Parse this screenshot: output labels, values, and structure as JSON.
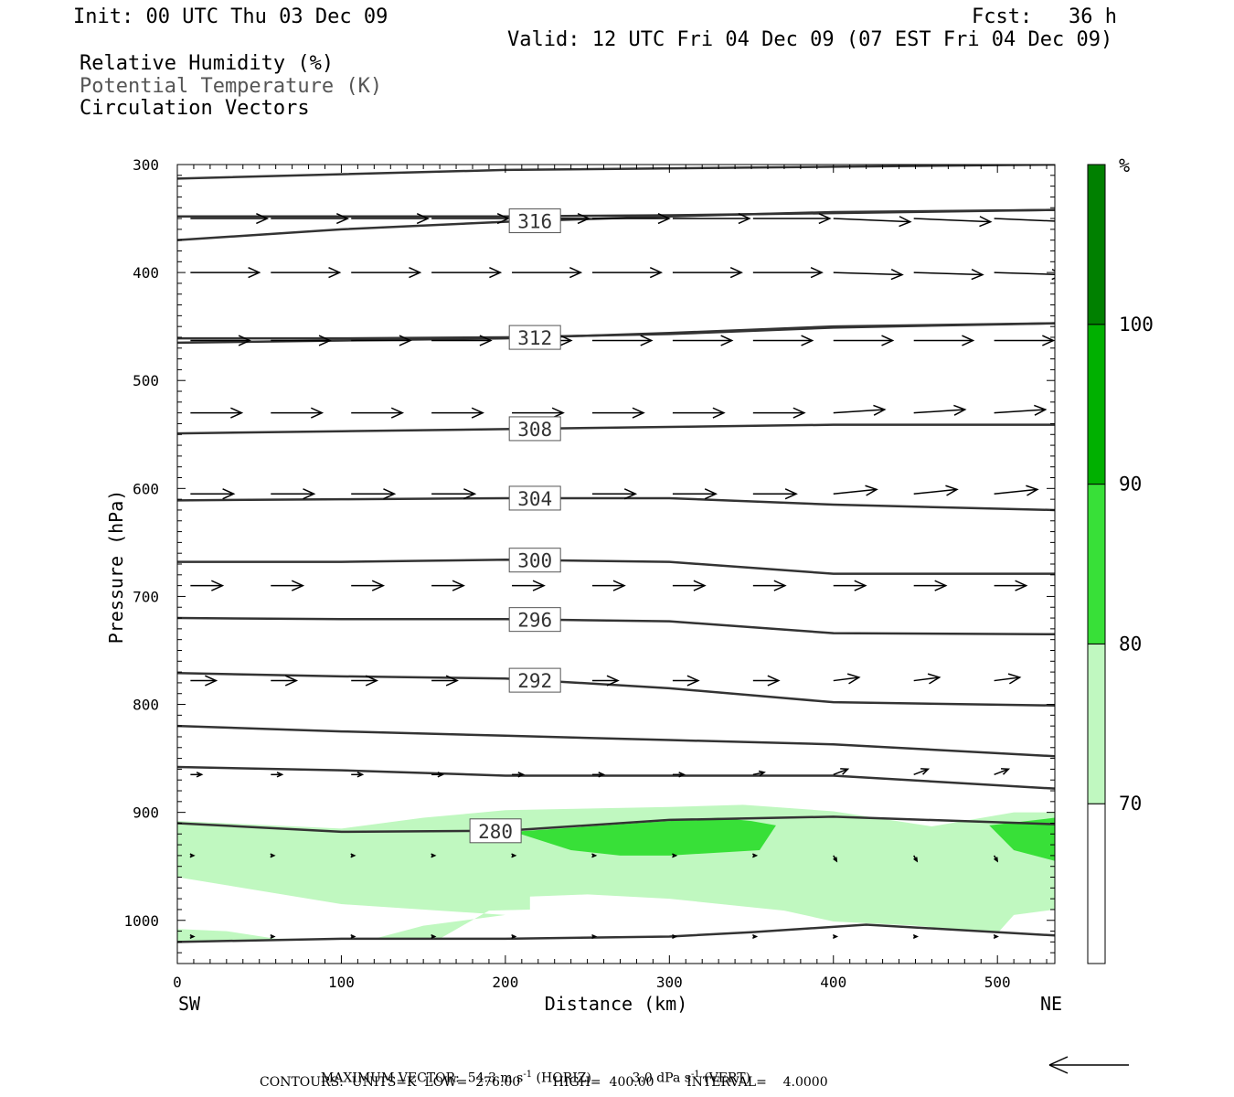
{
  "header": {
    "init": "Init: 00 UTC Thu 03 Dec 09",
    "fcst": "Fcst:   36 h",
    "valid": "Valid: 12 UTC Fri 04 Dec 09 (07 EST Fri 04 Dec 09)",
    "legend_lines": [
      "Relative Humidity (%)",
      "Potential Temperature (K)",
      "Circulation Vectors"
    ]
  },
  "colors": {
    "rh_70_80": "#c0f8c0",
    "rh_80_90": "#38e038",
    "rh_90_100": "#00b000",
    "rh_100_plus": "#008000",
    "contour": "#333333"
  },
  "chart_data": {
    "type": "cross-section",
    "xlabel": "Distance (km)",
    "ylabel": "Pressure (hPa)",
    "xlim": [
      0,
      535
    ],
    "ylim": [
      1040,
      300
    ],
    "x_ticks": [
      "0",
      "100",
      "200",
      "300",
      "400",
      "500"
    ],
    "y_ticks": [
      "300",
      "400",
      "500",
      "600",
      "700",
      "800",
      "900",
      "1000"
    ],
    "left_end_label": "SW",
    "right_end_label": "NE",
    "colorbar": {
      "unit_label": "%",
      "tick_labels": [
        "70",
        "80",
        "90",
        "100"
      ],
      "bins": [
        {
          "range": [
            0,
            70
          ],
          "color": "#ffffff"
        },
        {
          "range": [
            70,
            80
          ],
          "color": "#c0f8c0"
        },
        {
          "range": [
            80,
            90
          ],
          "color": "#38e038"
        },
        {
          "range": [
            90,
            100
          ],
          "color": "#00b000"
        },
        {
          "range": [
            100,
            110
          ],
          "color": "#008000"
        }
      ]
    },
    "theta_contours": [
      {
        "label": "",
        "points": [
          [
            0,
            313
          ],
          [
            200,
            305
          ],
          [
            400,
            302
          ],
          [
            535,
            300
          ]
        ]
      },
      {
        "label": "316",
        "label_x": 218,
        "points": [
          [
            0,
            370
          ],
          [
            100,
            360
          ],
          [
            200,
            353
          ],
          [
            300,
            348
          ],
          [
            400,
            344
          ],
          [
            535,
            342
          ]
        ]
      },
      {
        "label": "",
        "points": [
          [
            0,
            348
          ],
          [
            100,
            348
          ],
          [
            200,
            348
          ],
          [
            300,
            347
          ],
          [
            400,
            345
          ],
          [
            535,
            342
          ]
        ]
      },
      {
        "label": "312",
        "label_x": 218,
        "points": [
          [
            0,
            465
          ],
          [
            100,
            463
          ],
          [
            200,
            461
          ],
          [
            300,
            456
          ],
          [
            400,
            450
          ],
          [
            535,
            447
          ]
        ]
      },
      {
        "label": "",
        "points": [
          [
            0,
            461
          ],
          [
            100,
            461
          ],
          [
            200,
            460
          ],
          [
            300,
            457
          ],
          [
            400,
            451
          ],
          [
            535,
            447
          ]
        ]
      },
      {
        "label": "308",
        "label_x": 218,
        "points": [
          [
            0,
            549
          ],
          [
            100,
            547
          ],
          [
            200,
            545
          ],
          [
            300,
            543
          ],
          [
            400,
            541
          ],
          [
            535,
            541
          ]
        ]
      },
      {
        "label": "304",
        "label_x": 218,
        "points": [
          [
            0,
            611
          ],
          [
            100,
            610
          ],
          [
            200,
            609
          ],
          [
            300,
            609
          ],
          [
            400,
            615
          ],
          [
            535,
            620
          ]
        ]
      },
      {
        "label": "300",
        "label_x": 218,
        "points": [
          [
            0,
            668
          ],
          [
            100,
            668
          ],
          [
            200,
            666
          ],
          [
            300,
            668
          ],
          [
            400,
            679
          ],
          [
            535,
            679
          ]
        ]
      },
      {
        "label": "296",
        "label_x": 218,
        "points": [
          [
            0,
            720
          ],
          [
            100,
            721
          ],
          [
            200,
            721
          ],
          [
            300,
            723
          ],
          [
            400,
            734
          ],
          [
            535,
            735
          ]
        ]
      },
      {
        "label": "292",
        "label_x": 218,
        "points": [
          [
            0,
            771
          ],
          [
            100,
            774
          ],
          [
            200,
            776
          ],
          [
            300,
            785
          ],
          [
            400,
            798
          ],
          [
            535,
            801
          ]
        ]
      },
      {
        "label": "",
        "points": [
          [
            0,
            820
          ],
          [
            100,
            825
          ],
          [
            200,
            829
          ],
          [
            300,
            833
          ],
          [
            400,
            837
          ],
          [
            535,
            848
          ]
        ]
      },
      {
        "label": "",
        "points": [
          [
            0,
            858
          ],
          [
            100,
            861
          ],
          [
            200,
            866
          ],
          [
            300,
            866
          ],
          [
            400,
            866
          ],
          [
            535,
            878
          ]
        ]
      },
      {
        "label": "280",
        "label_x": 194,
        "points": [
          [
            0,
            910
          ],
          [
            100,
            918
          ],
          [
            200,
            917
          ],
          [
            300,
            907
          ],
          [
            400,
            904
          ],
          [
            535,
            911
          ]
        ]
      },
      {
        "label": "",
        "points": [
          [
            0,
            1020
          ],
          [
            100,
            1017
          ],
          [
            200,
            1017
          ],
          [
            300,
            1015
          ],
          [
            350,
            1011
          ],
          [
            420,
            1004
          ],
          [
            535,
            1014
          ]
        ]
      }
    ],
    "wind_vector_rows": [
      {
        "p": 350,
        "u": [
          48,
          48,
          48,
          48,
          48,
          48,
          48,
          48,
          48,
          48,
          48
        ],
        "w": [
          0,
          0,
          0,
          0,
          0,
          0,
          0,
          0,
          -0.3,
          -0.3,
          -0.3
        ]
      },
      {
        "p": 400,
        "u": [
          43,
          43,
          43,
          43,
          43,
          43,
          43,
          43,
          43,
          43,
          43
        ],
        "w": [
          0,
          0,
          0,
          0,
          0,
          0,
          0,
          0,
          -0.2,
          -0.2,
          -0.2
        ]
      },
      {
        "p": 463,
        "u": [
          37,
          37,
          37,
          37,
          37,
          37,
          37,
          37,
          37,
          37,
          37
        ],
        "w": [
          0,
          0,
          0,
          0,
          0,
          0,
          0,
          0,
          0,
          0,
          0
        ]
      },
      {
        "p": 530,
        "u": [
          32,
          32,
          32,
          32,
          32,
          32,
          32,
          32,
          32,
          32,
          32
        ],
        "w": [
          0,
          0,
          0,
          0,
          0,
          0,
          0,
          0,
          0.3,
          0.3,
          0.3
        ]
      },
      {
        "p": 605,
        "u": [
          27,
          27,
          27,
          27,
          27,
          27,
          27,
          27,
          27,
          27,
          27
        ],
        "w": [
          0,
          0,
          0,
          0,
          0,
          0,
          0,
          0,
          0.4,
          0.4,
          0.4
        ]
      },
      {
        "p": 690,
        "u": [
          20,
          20,
          20,
          20,
          20,
          20,
          20,
          20,
          20,
          20,
          20
        ],
        "w": [
          0,
          0,
          0,
          0,
          0,
          0,
          0,
          0,
          0,
          0,
          0
        ]
      },
      {
        "p": 778,
        "u": [
          16,
          16,
          16,
          16,
          16,
          16,
          16,
          16,
          16,
          16,
          16
        ],
        "w": [
          0,
          0,
          0,
          0,
          0,
          0,
          0,
          0,
          0.3,
          0.3,
          0.3
        ]
      },
      {
        "p": 865,
        "u": [
          7,
          7,
          7,
          7,
          7,
          7,
          7,
          7,
          9,
          9,
          9
        ],
        "w": [
          0,
          0,
          0,
          0,
          0,
          0,
          0,
          0.2,
          0.5,
          0.5,
          0.5
        ]
      },
      {
        "p": 940,
        "u": [
          2,
          2,
          2,
          2,
          2,
          2,
          2,
          2,
          2,
          2,
          2
        ],
        "w": [
          0,
          0,
          0,
          0,
          0,
          0,
          0,
          0,
          -0.5,
          -0.5,
          -0.5
        ]
      },
      {
        "p": 1015,
        "u": [
          2,
          2,
          2,
          2,
          2,
          2,
          2,
          2,
          2,
          2,
          2
        ],
        "w": [
          0,
          0,
          0,
          0,
          0,
          0,
          0,
          0,
          0,
          0,
          0
        ]
      }
    ],
    "vector_x": [
      8,
      57,
      106,
      155,
      204,
      253,
      302,
      351,
      400,
      449,
      498
    ],
    "rh_regions": [
      {
        "bin": "70-80",
        "points": [
          [
            0,
            908
          ],
          [
            100,
            915
          ],
          [
            150,
            905
          ],
          [
            200,
            898
          ],
          [
            300,
            895
          ],
          [
            345,
            893
          ],
          [
            400,
            899
          ],
          [
            460,
            913
          ],
          [
            510,
            900
          ],
          [
            535,
            900
          ],
          [
            535,
            990
          ],
          [
            510,
            995
          ],
          [
            500,
            1012
          ],
          [
            450,
            1005
          ],
          [
            400,
            1001
          ],
          [
            370,
            991
          ],
          [
            300,
            980
          ],
          [
            250,
            976
          ],
          [
            215,
            978
          ],
          [
            215,
            990
          ],
          [
            190,
            991
          ],
          [
            160,
            1017
          ],
          [
            100,
            1017
          ],
          [
            60,
            1017
          ],
          [
            30,
            1010
          ],
          [
            0,
            1008
          ],
          [
            0,
            1020
          ],
          [
            120,
            1017
          ],
          [
            150,
            1005
          ],
          [
            200,
            995
          ],
          [
            100,
            985
          ],
          [
            0,
            960
          ]
        ]
      },
      {
        "bin": "80-90",
        "points": [
          [
            205,
            918
          ],
          [
            280,
            910
          ],
          [
            330,
            905
          ],
          [
            350,
            908
          ],
          [
            365,
            912
          ],
          [
            355,
            935
          ],
          [
            300,
            940
          ],
          [
            270,
            940
          ],
          [
            240,
            935
          ]
        ]
      },
      {
        "bin": "80-90",
        "points": [
          [
            495,
            912
          ],
          [
            535,
            905
          ],
          [
            535,
            945
          ],
          [
            510,
            935
          ]
        ]
      }
    ],
    "footer": {
      "max_vector_label": "MAXIMUM VECTOR:",
      "max_horiz": "54.3 m s",
      "horiz_unit": "(HORIZ)",
      "max_vert": "3.0 dPa s",
      "vert_unit": "(VERT)",
      "exponent": "-1",
      "contours_line": "CONTOURS:  UNITS=K  LOW=  276.00        HIGH=  400.00        INTERVAL=    4.0000"
    }
  }
}
